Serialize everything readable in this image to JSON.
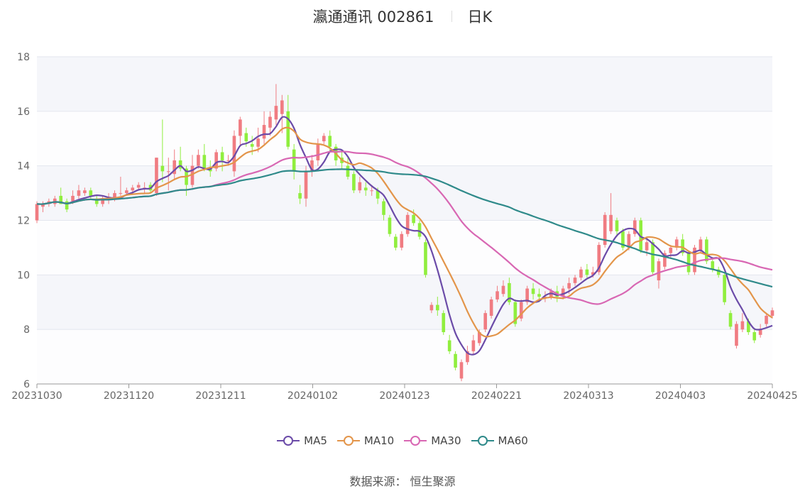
{
  "header": {
    "title": "瀛通通讯 002861",
    "period": "日K"
  },
  "source": "数据来源： 恒生聚源",
  "chart_data": {
    "type": "candlestick",
    "ylim": [
      6,
      18
    ],
    "yticks": [
      6,
      8,
      10,
      12,
      14,
      16,
      18
    ],
    "xtick_labels": [
      "20231030",
      "20231120",
      "20231211",
      "20240102",
      "20240123",
      "20240221",
      "20240313",
      "20240403",
      "20240425"
    ],
    "up_color": "#f07c82",
    "down_color": "#90ee3e",
    "grid": true,
    "legend_position": "bottom",
    "series": [
      {
        "name": "MA5",
        "color": "#6b4ba8"
      },
      {
        "name": "MA10",
        "color": "#e3954a"
      },
      {
        "name": "MA30",
        "color": "#d867b3"
      },
      {
        "name": "MA60",
        "color": "#2f8a8a"
      }
    ],
    "candles": [
      [
        12.0,
        12.6,
        12.7,
        11.9
      ],
      [
        12.5,
        12.6,
        12.7,
        12.3
      ],
      [
        12.6,
        12.7,
        12.8,
        12.5
      ],
      [
        12.6,
        12.8,
        12.9,
        12.5
      ],
      [
        12.9,
        12.6,
        13.2,
        12.6
      ],
      [
        12.7,
        12.4,
        12.8,
        12.3
      ],
      [
        12.7,
        12.9,
        13.1,
        12.6
      ],
      [
        12.9,
        13.1,
        13.3,
        12.8
      ],
      [
        13.0,
        13.1,
        13.2,
        12.9
      ],
      [
        13.1,
        12.9,
        13.2,
        12.8
      ],
      [
        12.8,
        12.6,
        12.9,
        12.5
      ],
      [
        12.6,
        12.8,
        12.9,
        12.5
      ],
      [
        12.8,
        12.8,
        13.0,
        12.6
      ],
      [
        12.8,
        13.0,
        13.1,
        12.7
      ],
      [
        13.0,
        13.0,
        13.6,
        12.9
      ],
      [
        13.0,
        13.1,
        13.2,
        12.9
      ],
      [
        13.1,
        13.2,
        13.3,
        13.0
      ],
      [
        13.2,
        13.3,
        13.4,
        13.1
      ],
      [
        13.2,
        13.2,
        13.4,
        13.0
      ],
      [
        13.3,
        13.1,
        13.4,
        13.0
      ],
      [
        13.0,
        14.3,
        14.3,
        12.9
      ],
      [
        14.0,
        13.8,
        15.7,
        13.4
      ],
      [
        13.8,
        13.8,
        14.3,
        13.1
      ],
      [
        13.7,
        14.2,
        14.6,
        13.5
      ],
      [
        14.2,
        13.9,
        14.7,
        13.8
      ],
      [
        13.9,
        13.3,
        14.0,
        12.9
      ],
      [
        13.3,
        14.0,
        14.4,
        13.2
      ],
      [
        14.0,
        14.4,
        14.6,
        13.9
      ],
      [
        14.4,
        13.9,
        14.8,
        13.8
      ],
      [
        13.9,
        13.8,
        14.2,
        13.6
      ],
      [
        13.9,
        14.5,
        14.6,
        13.8
      ],
      [
        14.5,
        14.2,
        14.7,
        13.8
      ],
      [
        14.2,
        14.2,
        14.4,
        14.0
      ],
      [
        13.8,
        15.1,
        15.3,
        13.6
      ],
      [
        15.1,
        15.7,
        15.8,
        14.7
      ],
      [
        15.2,
        14.9,
        15.4,
        14.7
      ],
      [
        14.8,
        14.7,
        15.1,
        14.4
      ],
      [
        14.7,
        15.0,
        15.4,
        14.5
      ],
      [
        15.0,
        15.5,
        16.0,
        14.8
      ],
      [
        15.4,
        15.8,
        16.0,
        15.1
      ],
      [
        15.7,
        16.2,
        17.0,
        15.5
      ],
      [
        15.9,
        16.4,
        16.6,
        15.2
      ],
      [
        16.0,
        14.7,
        16.6,
        14.6
      ],
      [
        14.6,
        13.8,
        14.8,
        13.5
      ],
      [
        13.0,
        12.8,
        13.3,
        12.6
      ],
      [
        12.8,
        13.8,
        14.0,
        12.5
      ],
      [
        13.8,
        14.2,
        14.4,
        13.6
      ],
      [
        14.2,
        14.8,
        15.0,
        14.0
      ],
      [
        14.9,
        15.1,
        15.2,
        14.8
      ],
      [
        15.1,
        14.7,
        15.3,
        14.5
      ],
      [
        14.7,
        14.2,
        14.8,
        14.0
      ],
      [
        14.3,
        14.1,
        14.5,
        13.9
      ],
      [
        14.0,
        13.6,
        14.3,
        13.5
      ],
      [
        13.7,
        13.1,
        13.8,
        13.0
      ],
      [
        13.1,
        13.4,
        13.6,
        13.0
      ],
      [
        13.2,
        13.1,
        13.4,
        12.9
      ],
      [
        13.1,
        13.1,
        13.3,
        12.9
      ],
      [
        13.1,
        12.8,
        13.2,
        12.6
      ],
      [
        12.7,
        12.2,
        12.8,
        12.0
      ],
      [
        12.1,
        11.5,
        12.2,
        11.4
      ],
      [
        11.4,
        11.0,
        11.5,
        10.9
      ],
      [
        11.0,
        11.5,
        11.6,
        10.9
      ],
      [
        11.5,
        12.2,
        12.3,
        11.4
      ],
      [
        12.2,
        11.9,
        12.4,
        11.8
      ],
      [
        11.9,
        11.4,
        12.0,
        11.3
      ],
      [
        11.2,
        10.0,
        11.3,
        9.9
      ],
      [
        8.7,
        8.9,
        9.0,
        8.6
      ],
      [
        8.9,
        8.7,
        9.2,
        8.5
      ],
      [
        8.6,
        7.9,
        8.7,
        7.8
      ],
      [
        7.6,
        7.2,
        7.8,
        7.1
      ],
      [
        7.1,
        6.6,
        7.2,
        6.5
      ],
      [
        6.2,
        6.8,
        6.9,
        6.1
      ],
      [
        6.8,
        7.2,
        7.4,
        6.7
      ],
      [
        7.2,
        7.6,
        7.8,
        7.1
      ],
      [
        7.5,
        7.9,
        8.0,
        7.4
      ],
      [
        8.0,
        8.6,
        8.7,
        7.9
      ],
      [
        8.5,
        9.1,
        9.2,
        8.4
      ],
      [
        9.1,
        9.4,
        9.6,
        9.0
      ],
      [
        9.3,
        9.6,
        9.8,
        9.2
      ],
      [
        9.7,
        9.0,
        9.9,
        8.9
      ],
      [
        9.0,
        8.2,
        9.1,
        8.1
      ],
      [
        8.4,
        9.0,
        9.1,
        8.3
      ],
      [
        9.0,
        9.5,
        9.6,
        8.9
      ],
      [
        9.5,
        9.3,
        9.7,
        9.1
      ],
      [
        9.3,
        9.2,
        9.5,
        9.0
      ],
      [
        9.2,
        9.2,
        9.4,
        9.0
      ],
      [
        9.2,
        9.4,
        9.5,
        9.1
      ],
      [
        9.4,
        9.2,
        9.6,
        9.0
      ],
      [
        9.2,
        9.5,
        9.6,
        9.1
      ],
      [
        9.5,
        9.7,
        9.9,
        9.3
      ],
      [
        9.7,
        9.9,
        10.0,
        9.6
      ],
      [
        9.9,
        10.2,
        10.3,
        9.8
      ],
      [
        10.2,
        10.0,
        10.4,
        9.9
      ],
      [
        10.0,
        10.1,
        10.3,
        9.9
      ],
      [
        10.1,
        11.1,
        11.2,
        10.0
      ],
      [
        11.1,
        12.2,
        12.3,
        11.0
      ],
      [
        11.6,
        12.2,
        13.0,
        11.5
      ],
      [
        12.0,
        11.6,
        12.1,
        11.4
      ],
      [
        11.6,
        11.0,
        11.7,
        10.9
      ],
      [
        11.0,
        11.5,
        11.6,
        10.9
      ],
      [
        11.5,
        12.0,
        12.1,
        11.4
      ],
      [
        12.0,
        10.9,
        12.1,
        10.8
      ],
      [
        10.9,
        11.2,
        11.3,
        10.7
      ],
      [
        11.2,
        10.1,
        11.3,
        10.0
      ],
      [
        9.8,
        10.5,
        10.6,
        9.5
      ],
      [
        10.3,
        10.8,
        10.9,
        10.2
      ],
      [
        10.8,
        11.0,
        11.1,
        10.6
      ],
      [
        11.0,
        11.3,
        11.4,
        10.9
      ],
      [
        11.3,
        10.8,
        11.5,
        10.7
      ],
      [
        10.8,
        10.1,
        10.9,
        10.0
      ],
      [
        10.1,
        11.0,
        11.1,
        10.0
      ],
      [
        10.9,
        11.3,
        11.4,
        10.8
      ],
      [
        11.3,
        10.5,
        11.4,
        10.4
      ],
      [
        10.5,
        10.2,
        10.6,
        10.1
      ],
      [
        10.2,
        10.0,
        10.3,
        9.9
      ],
      [
        10.0,
        9.0,
        10.1,
        8.9
      ],
      [
        8.6,
        8.1,
        8.7,
        8.0
      ],
      [
        7.4,
        8.2,
        8.3,
        7.3
      ],
      [
        8.0,
        8.3,
        8.6,
        7.9
      ],
      [
        8.3,
        7.9,
        8.4,
        7.8
      ],
      [
        7.9,
        7.6,
        8.0,
        7.5
      ],
      [
        7.8,
        8.0,
        8.2,
        7.7
      ],
      [
        8.2,
        8.5,
        8.6,
        8.1
      ],
      [
        8.5,
        8.7,
        8.8,
        8.4
      ]
    ]
  }
}
